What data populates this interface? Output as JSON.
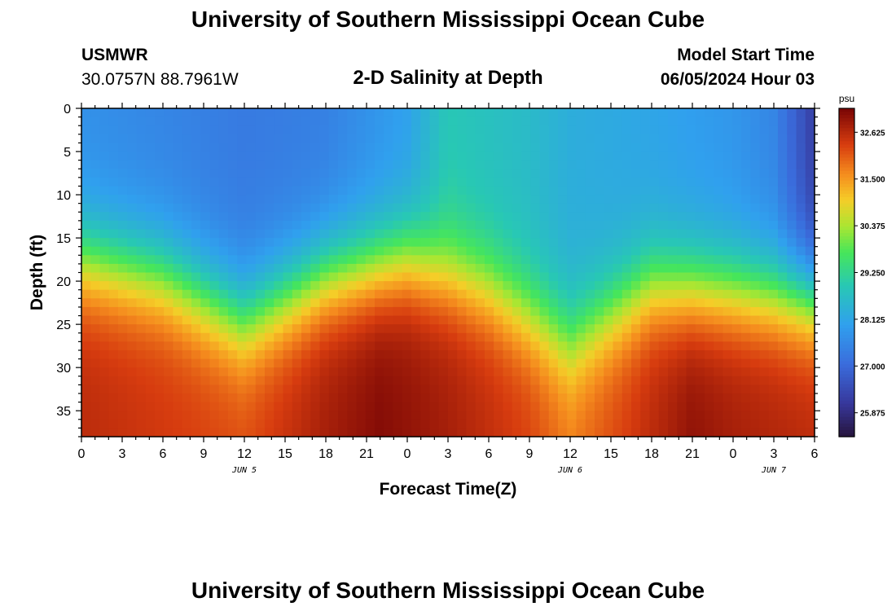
{
  "header": {
    "title": "University of Southern Mississippi Ocean Cube",
    "station_id": "USMWR",
    "coords": "30.0757N  88.7961W",
    "subtitle": "2-D Salinity at Depth",
    "model_start_label": "Model Start Time",
    "model_start_value": "06/05/2024 Hour 03"
  },
  "footer": {
    "title": "University of Southern Mississippi Ocean Cube"
  },
  "chart_data": {
    "type": "heatmap",
    "title": "2-D Salinity at Depth",
    "xlabel": "Forecast Time(Z)",
    "ylabel": "Depth (ft)",
    "x_hours_range": [
      0,
      54
    ],
    "y_range": [
      0,
      38
    ],
    "x_ticks": [
      "0",
      "3",
      "6",
      "9",
      "12",
      "15",
      "18",
      "21",
      "0",
      "3",
      "6",
      "9",
      "12",
      "15",
      "18",
      "21",
      "0",
      "3",
      "6"
    ],
    "y_ticks": [
      "0",
      "5",
      "10",
      "15",
      "20",
      "25",
      "30",
      "35"
    ],
    "date_labels": [
      {
        "label": "JUN 5",
        "hour": 12
      },
      {
        "label": "JUN 6",
        "hour": 36
      },
      {
        "label": "JUN 7",
        "hour": 51
      }
    ],
    "colorbar": {
      "unit": "psu",
      "min": 25.3,
      "max": 33.2,
      "tick_labels": [
        "32.625",
        "31.500",
        "30.375",
        "29.250",
        "28.125",
        "27.000",
        "25.875"
      ],
      "tick_values": [
        32.625,
        31.5,
        30.375,
        29.25,
        28.125,
        27.0,
        25.875
      ]
    },
    "field_model": {
      "surface_salinity": [
        [
          0,
          27.7
        ],
        [
          6,
          27.5
        ],
        [
          12,
          27.3
        ],
        [
          18,
          27.4
        ],
        [
          24,
          28.0
        ],
        [
          27,
          28.9
        ],
        [
          33,
          28.6
        ],
        [
          36,
          28.3
        ],
        [
          42,
          28.1
        ],
        [
          48,
          27.8
        ],
        [
          51,
          27.5
        ],
        [
          54,
          26.2
        ]
      ],
      "halocline_depth": [
        [
          0,
          17.5
        ],
        [
          6,
          19.5
        ],
        [
          12,
          24.5
        ],
        [
          18,
          19.5
        ],
        [
          24,
          17.5
        ],
        [
          30,
          21
        ],
        [
          36,
          27
        ],
        [
          42,
          20.5
        ],
        [
          48,
          21
        ],
        [
          54,
          22
        ]
      ],
      "bottom_salinity": [
        [
          0,
          32.6
        ],
        [
          6,
          32.4
        ],
        [
          12,
          32.2
        ],
        [
          18,
          32.8
        ],
        [
          22,
          33.1
        ],
        [
          27,
          32.8
        ],
        [
          33,
          32.3
        ],
        [
          36,
          31.8
        ],
        [
          42,
          32.6
        ],
        [
          45,
          33.0
        ],
        [
          48,
          32.8
        ],
        [
          54,
          32.6
        ]
      ]
    }
  }
}
